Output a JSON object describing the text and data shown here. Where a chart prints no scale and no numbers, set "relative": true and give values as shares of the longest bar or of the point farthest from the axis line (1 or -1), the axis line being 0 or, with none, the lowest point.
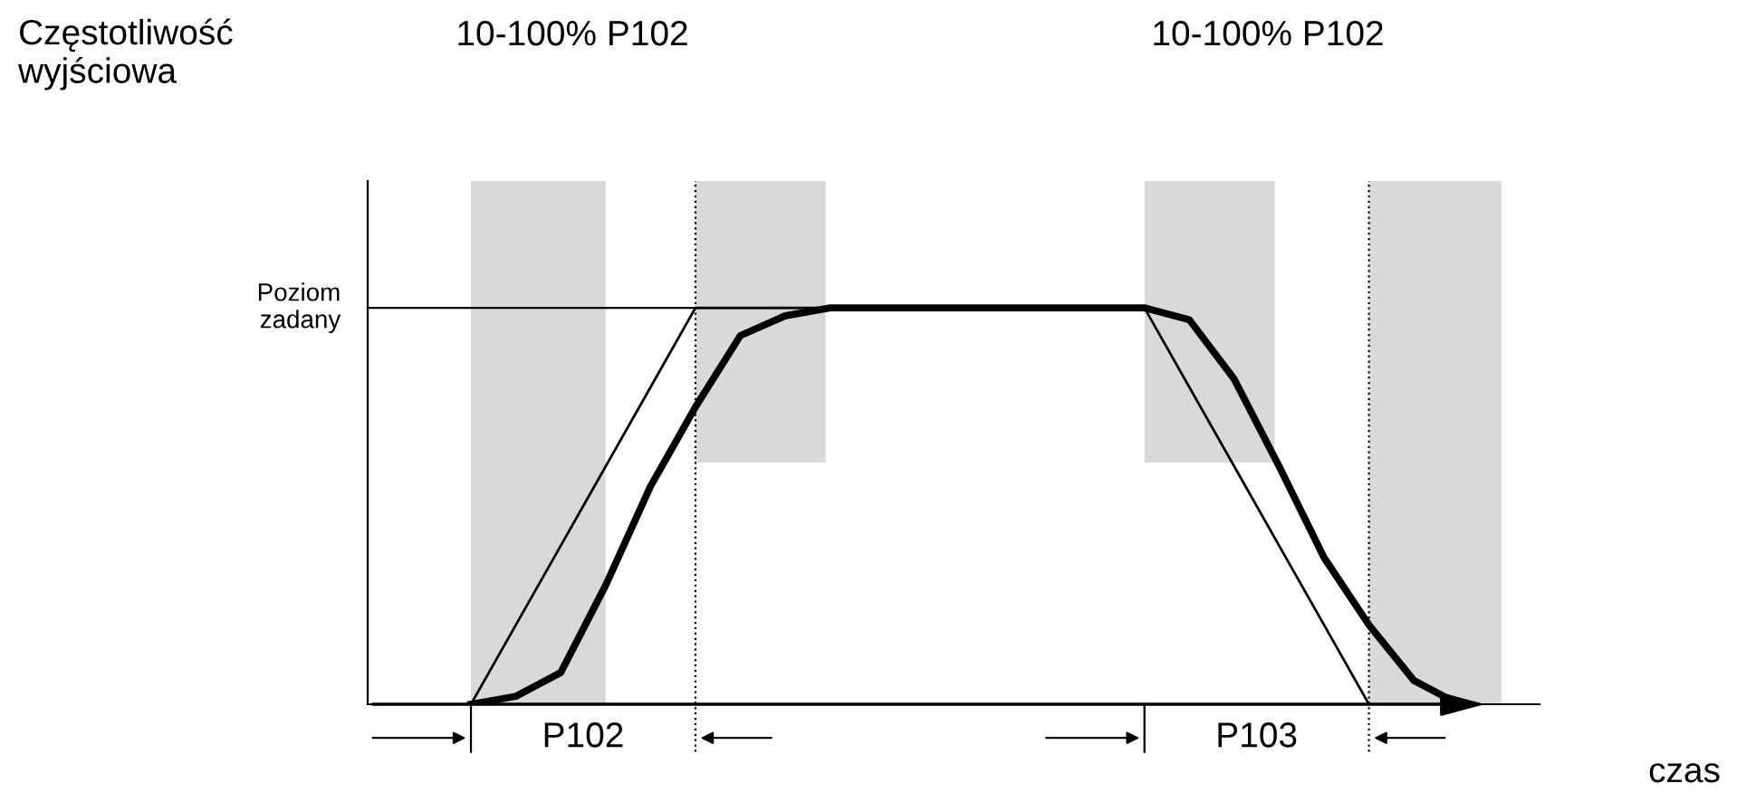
{
  "chart_data": {
    "type": "line",
    "relative": true,
    "categories": [
      null,
      null,
      null,
      null,
      null,
      null,
      null,
      null,
      null,
      null,
      null,
      null,
      null,
      null,
      null,
      null,
      null,
      null,
      null,
      null,
      null,
      null,
      null
    ],
    "series": [
      {
        "color": "#000000",
        "values": [
          0,
          0.2,
          0.4,
          0.6,
          0.8,
          1,
          1,
          1,
          1,
          1,
          1,
          1,
          1,
          1,
          1,
          1,
          0.8,
          0.6,
          0.4,
          0.2,
          0,
          null,
          null
        ]
      },
      {
        "color": "#000000",
        "values": [
          0,
          0.02,
          0.08,
          0.3,
          0.55,
          0.75,
          0.93,
          0.98,
          1,
          1,
          1,
          1,
          1,
          1,
          1,
          1,
          0.97,
          0.82,
          0.6,
          0.37,
          0.2,
          0.06,
          0
        ]
      }
    ],
    "ref_lines": [
      {
        "axis": "y",
        "value": 1,
        "label": "Poziom\nzadany",
        "color": "#000000"
      }
    ],
    "annotations": [
      "10-100% P102",
      "10-100% P102",
      "P102",
      "P103",
      "Częstotliwość\nwyjściowa",
      "czas"
    ],
    "marker": "none",
    "line_style": "solid"
  }
}
